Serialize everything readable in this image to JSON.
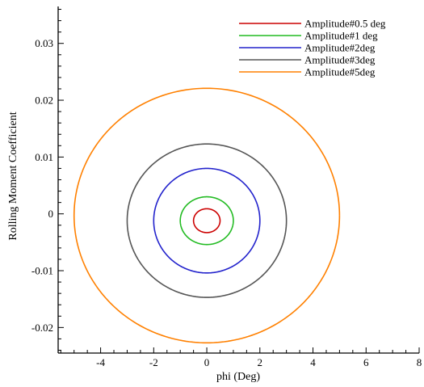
{
  "chart_data": {
    "type": "line",
    "title": "",
    "xlabel": "phi (Deg)",
    "ylabel": "Rolling Moment Coefficient",
    "xlim": [
      -5.6,
      8.0
    ],
    "ylim": [
      -0.0245,
      0.0365
    ],
    "x_ticks": [
      -4,
      -2,
      0,
      2,
      4,
      6,
      8
    ],
    "x_tick_labels": [
      "-4",
      "-2",
      "0",
      "2",
      "4",
      "6",
      "8"
    ],
    "y_ticks": [
      -0.02,
      -0.01,
      0,
      0.01,
      0.02,
      0.03
    ],
    "y_tick_labels": [
      "-0.02",
      "-0.01",
      "0",
      "0.01",
      "0.02",
      "0.03"
    ],
    "grid": false,
    "legend_position": "top-right",
    "series": [
      {
        "name": "Amplitude#0.5 deg",
        "color": "#cc0000",
        "amplitude": 0.5,
        "center": [
          0,
          -0.0012
        ],
        "y_half_range": 0.0021
      },
      {
        "name": "Amplitude#1 deg",
        "color": "#22bb22",
        "amplitude": 1,
        "center": [
          0,
          -0.0012
        ],
        "y_half_range": 0.0042
      },
      {
        "name": "Amplitude#2deg",
        "color": "#2222cc",
        "amplitude": 2,
        "center": [
          0,
          -0.0012
        ],
        "y_half_range": 0.0092
      },
      {
        "name": "Amplitude#3deg",
        "color": "#555555",
        "amplitude": 3,
        "center": [
          0,
          -0.0012
        ],
        "y_half_range": 0.0135
      },
      {
        "name": "Amplitude#5deg",
        "color": "#ff8000",
        "amplitude": 5,
        "center": [
          0,
          -0.0003
        ],
        "y_half_range": 0.0224
      }
    ]
  }
}
